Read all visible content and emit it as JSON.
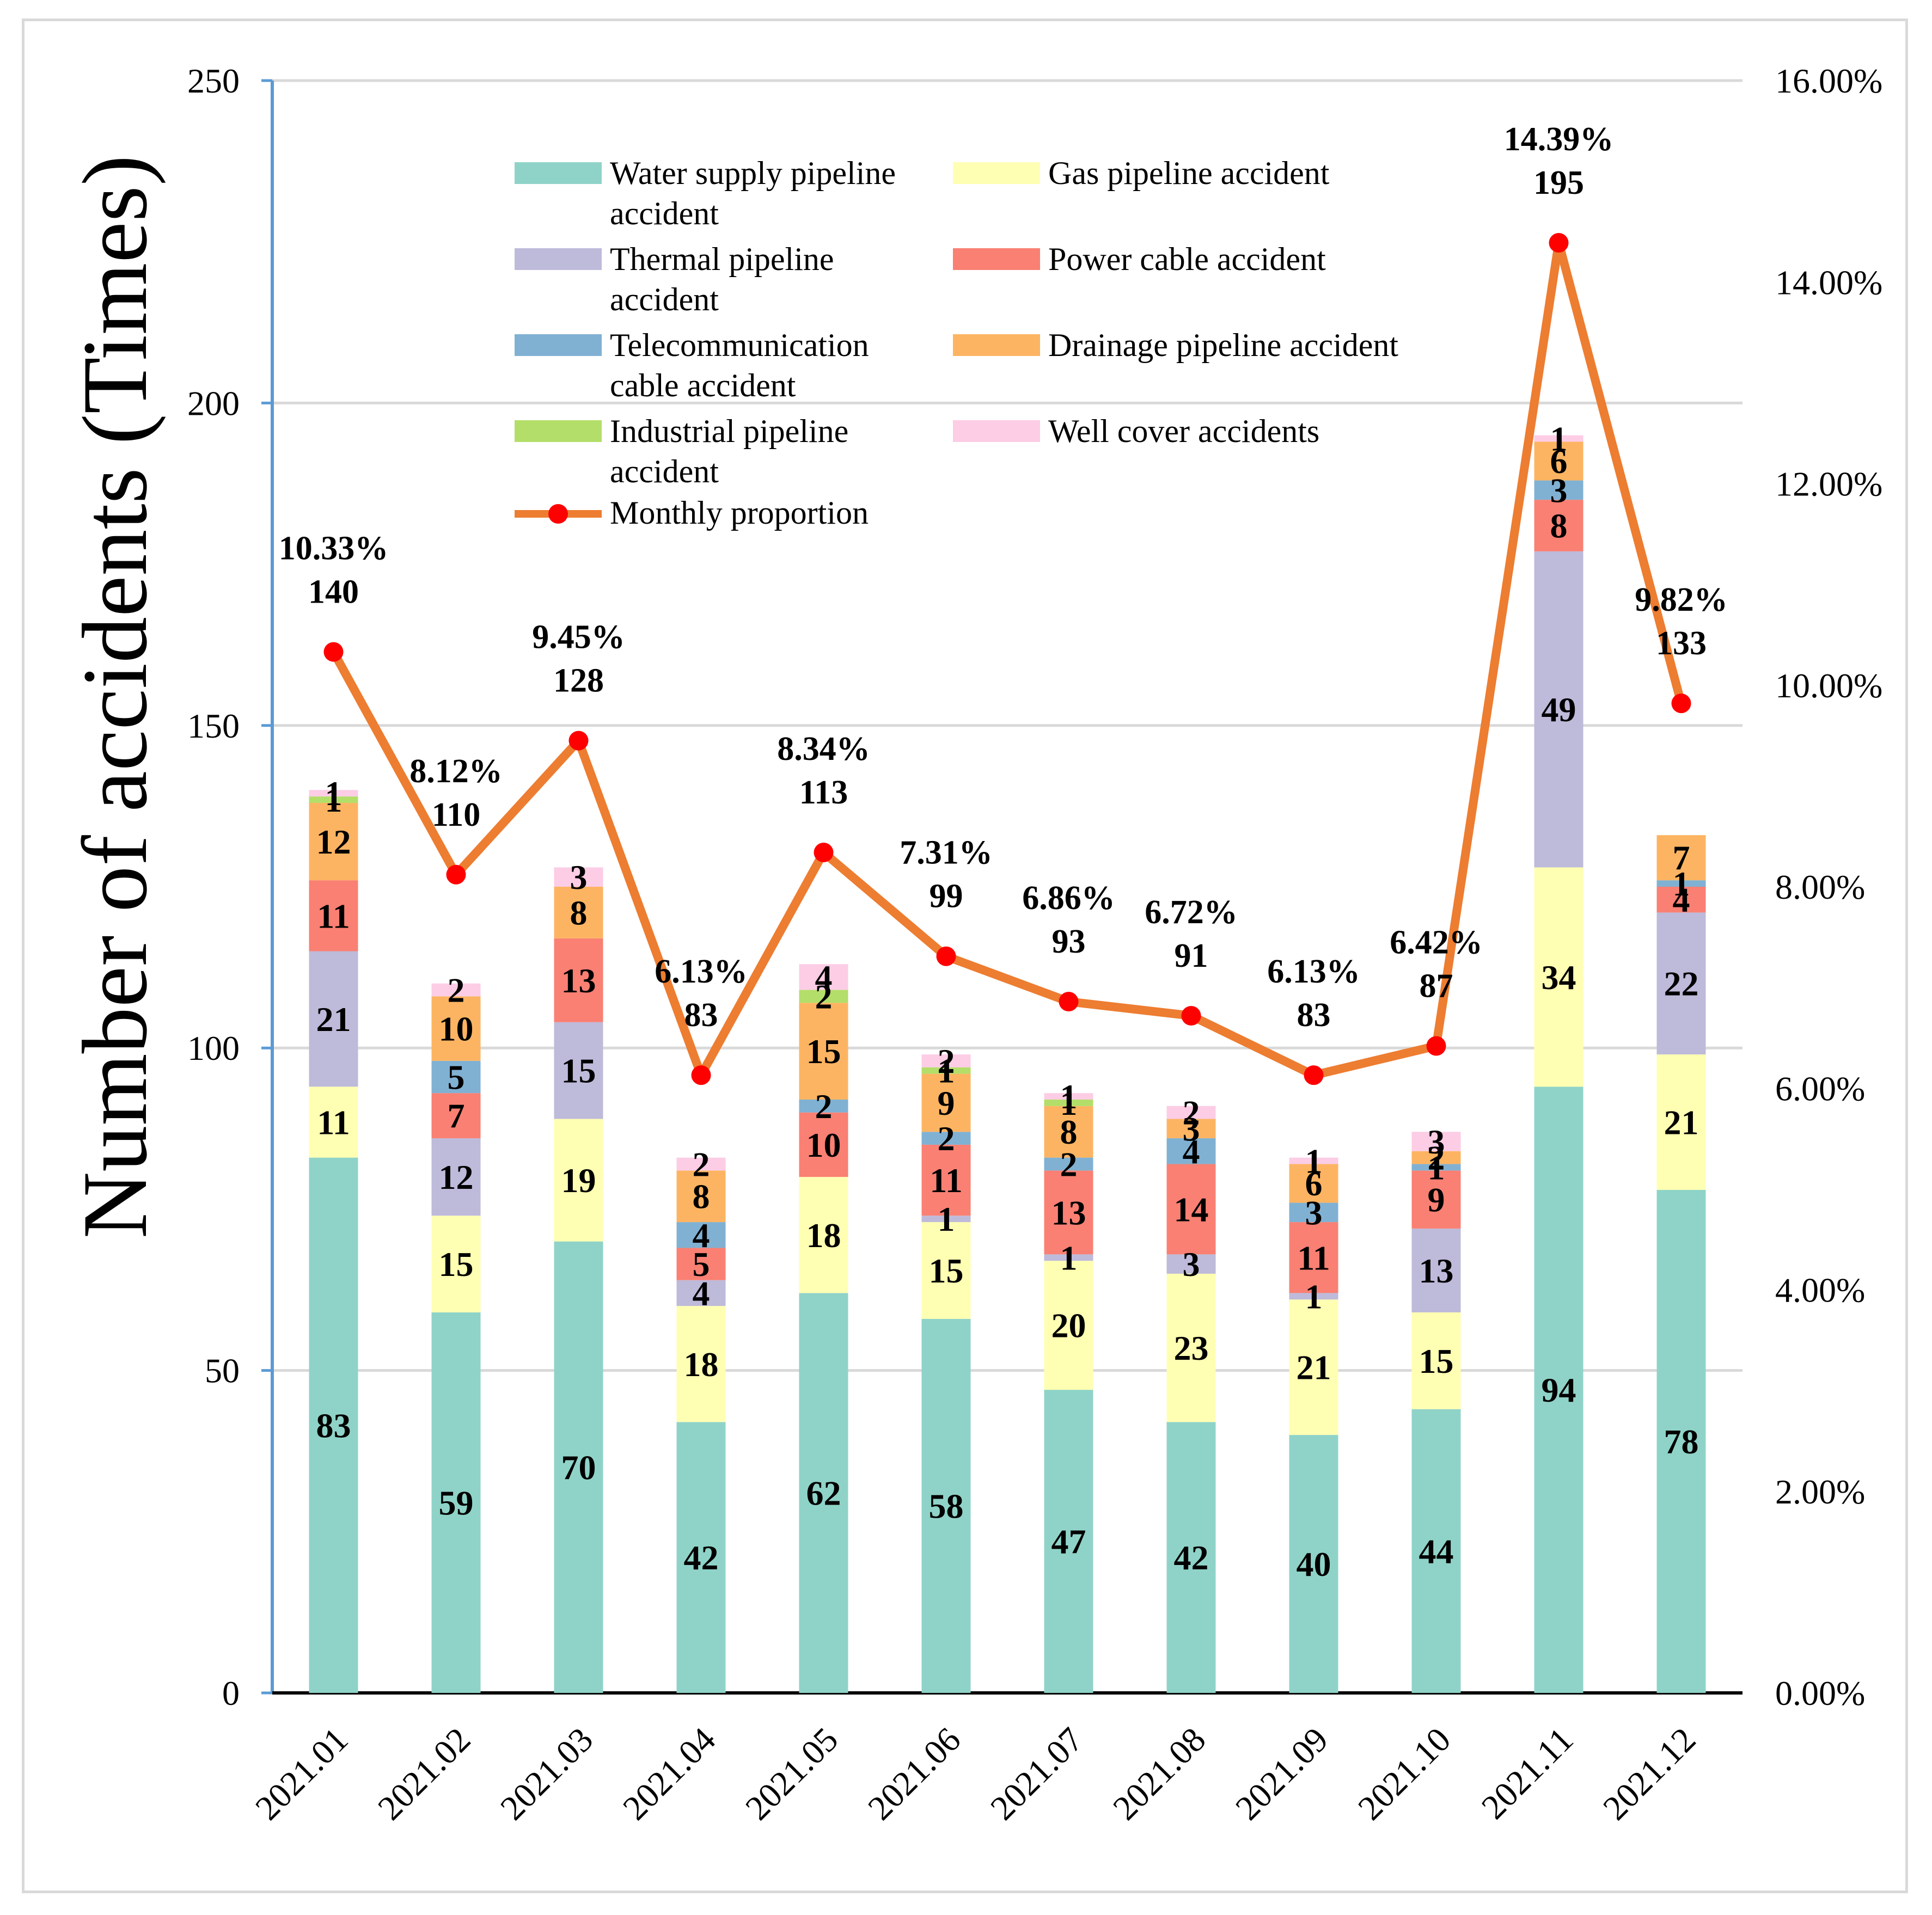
{
  "chart_data": {
    "type": "bar",
    "stacked": true,
    "categories": [
      "2021.01",
      "2021.02",
      "2021.03",
      "2021.04",
      "2021.05",
      "2021.06",
      "2021.07",
      "2021.08",
      "2021.09",
      "2021.10",
      "2021.11",
      "2021.12"
    ],
    "series": [
      {
        "name": "Water supply pipeline accident",
        "color": "#8fd3c8",
        "values": [
          83,
          59,
          70,
          42,
          62,
          58,
          47,
          42,
          40,
          44,
          94,
          78
        ]
      },
      {
        "name": "Gas pipeline accident",
        "color": "#ffffb3",
        "values": [
          11,
          15,
          19,
          18,
          18,
          15,
          20,
          23,
          21,
          15,
          34,
          21
        ]
      },
      {
        "name": "Thermal pipeline accident",
        "color": "#bebada",
        "values": [
          21,
          12,
          15,
          4,
          0,
          1,
          1,
          3,
          1,
          13,
          49,
          22
        ]
      },
      {
        "name": "Power cable accident",
        "color": "#f98073",
        "values": [
          11,
          7,
          13,
          5,
          10,
          11,
          13,
          14,
          11,
          9,
          8,
          4
        ]
      },
      {
        "name": "Telecommunication cable accident",
        "color": "#80b1d3",
        "values": [
          0,
          5,
          0,
          4,
          2,
          2,
          2,
          4,
          3,
          1,
          3,
          1
        ]
      },
      {
        "name": "Drainage pipeline accident",
        "color": "#fdb462",
        "values": [
          12,
          10,
          8,
          8,
          15,
          9,
          8,
          3,
          6,
          2,
          6,
          7
        ]
      },
      {
        "name": "Industrial pipeline accident",
        "color": "#b3de69",
        "values": [
          1,
          0,
          0,
          0,
          2,
          1,
          1,
          0,
          0,
          0,
          0,
          0
        ]
      },
      {
        "name": "Well cover accidents",
        "color": "#fccde5",
        "values": [
          1,
          2,
          3,
          2,
          4,
          2,
          1,
          2,
          1,
          3,
          1,
          0
        ]
      }
    ],
    "segment_labels": [
      [
        "83",
        "11",
        "21",
        "11",
        "",
        "12",
        "1",
        "1"
      ],
      [
        "59",
        "15",
        "12",
        "7",
        "5",
        "10",
        "",
        "2"
      ],
      [
        "70",
        "19",
        "15",
        "13",
        "",
        "8",
        "",
        "3"
      ],
      [
        "42",
        "18",
        "4",
        "5",
        "4",
        "8",
        "",
        "2"
      ],
      [
        "62",
        "18",
        "",
        "10",
        "2",
        "15",
        "2",
        "4"
      ],
      [
        "58",
        "15",
        "1",
        "11",
        "2",
        "9",
        "1",
        "2"
      ],
      [
        "47",
        "20",
        "1",
        "13",
        "2",
        "8",
        "1",
        "1"
      ],
      [
        "42",
        "23",
        "3",
        "14",
        "4",
        "3",
        "",
        "2"
      ],
      [
        "40",
        "21",
        "1",
        "11",
        "3",
        "6",
        "",
        "1"
      ],
      [
        "44",
        "15",
        "13",
        "9",
        "1",
        "2",
        "",
        "3"
      ],
      [
        "94",
        "34",
        "49",
        "8",
        "3",
        "6",
        "",
        "1"
      ],
      [
        "78",
        "21",
        "22",
        "4",
        "1",
        "7",
        "",
        ""
      ]
    ],
    "totals": [
      140,
      110,
      128,
      83,
      113,
      99,
      93,
      91,
      83,
      87,
      195,
      133
    ],
    "line": {
      "name": "Monthly proportion",
      "color": "#ed7d31",
      "marker_color": "#ff0000",
      "values": [
        10.33,
        8.12,
        9.45,
        6.13,
        8.34,
        7.31,
        6.86,
        6.72,
        6.13,
        6.42,
        14.39,
        9.82
      ],
      "labels": [
        "10.33%",
        "8.12%",
        "9.45%",
        "6.13%",
        "8.34%",
        "7.31%",
        "6.86%",
        "6.72%",
        "6.13%",
        "6.42%",
        "14.39%",
        "9.82%"
      ]
    },
    "ylabel": "Number of accidents (Times)",
    "ylim": [
      0,
      250
    ],
    "yticks": [
      "0",
      "50",
      "100",
      "150",
      "200",
      "250"
    ],
    "y2lim": [
      0,
      16
    ],
    "y2ticks": [
      "0.00%",
      "2.00%",
      "4.00%",
      "6.00%",
      "8.00%",
      "10.00%",
      "12.00%",
      "14.00%",
      "16.00%"
    ],
    "grid": true,
    "legend_position": "top-left"
  }
}
